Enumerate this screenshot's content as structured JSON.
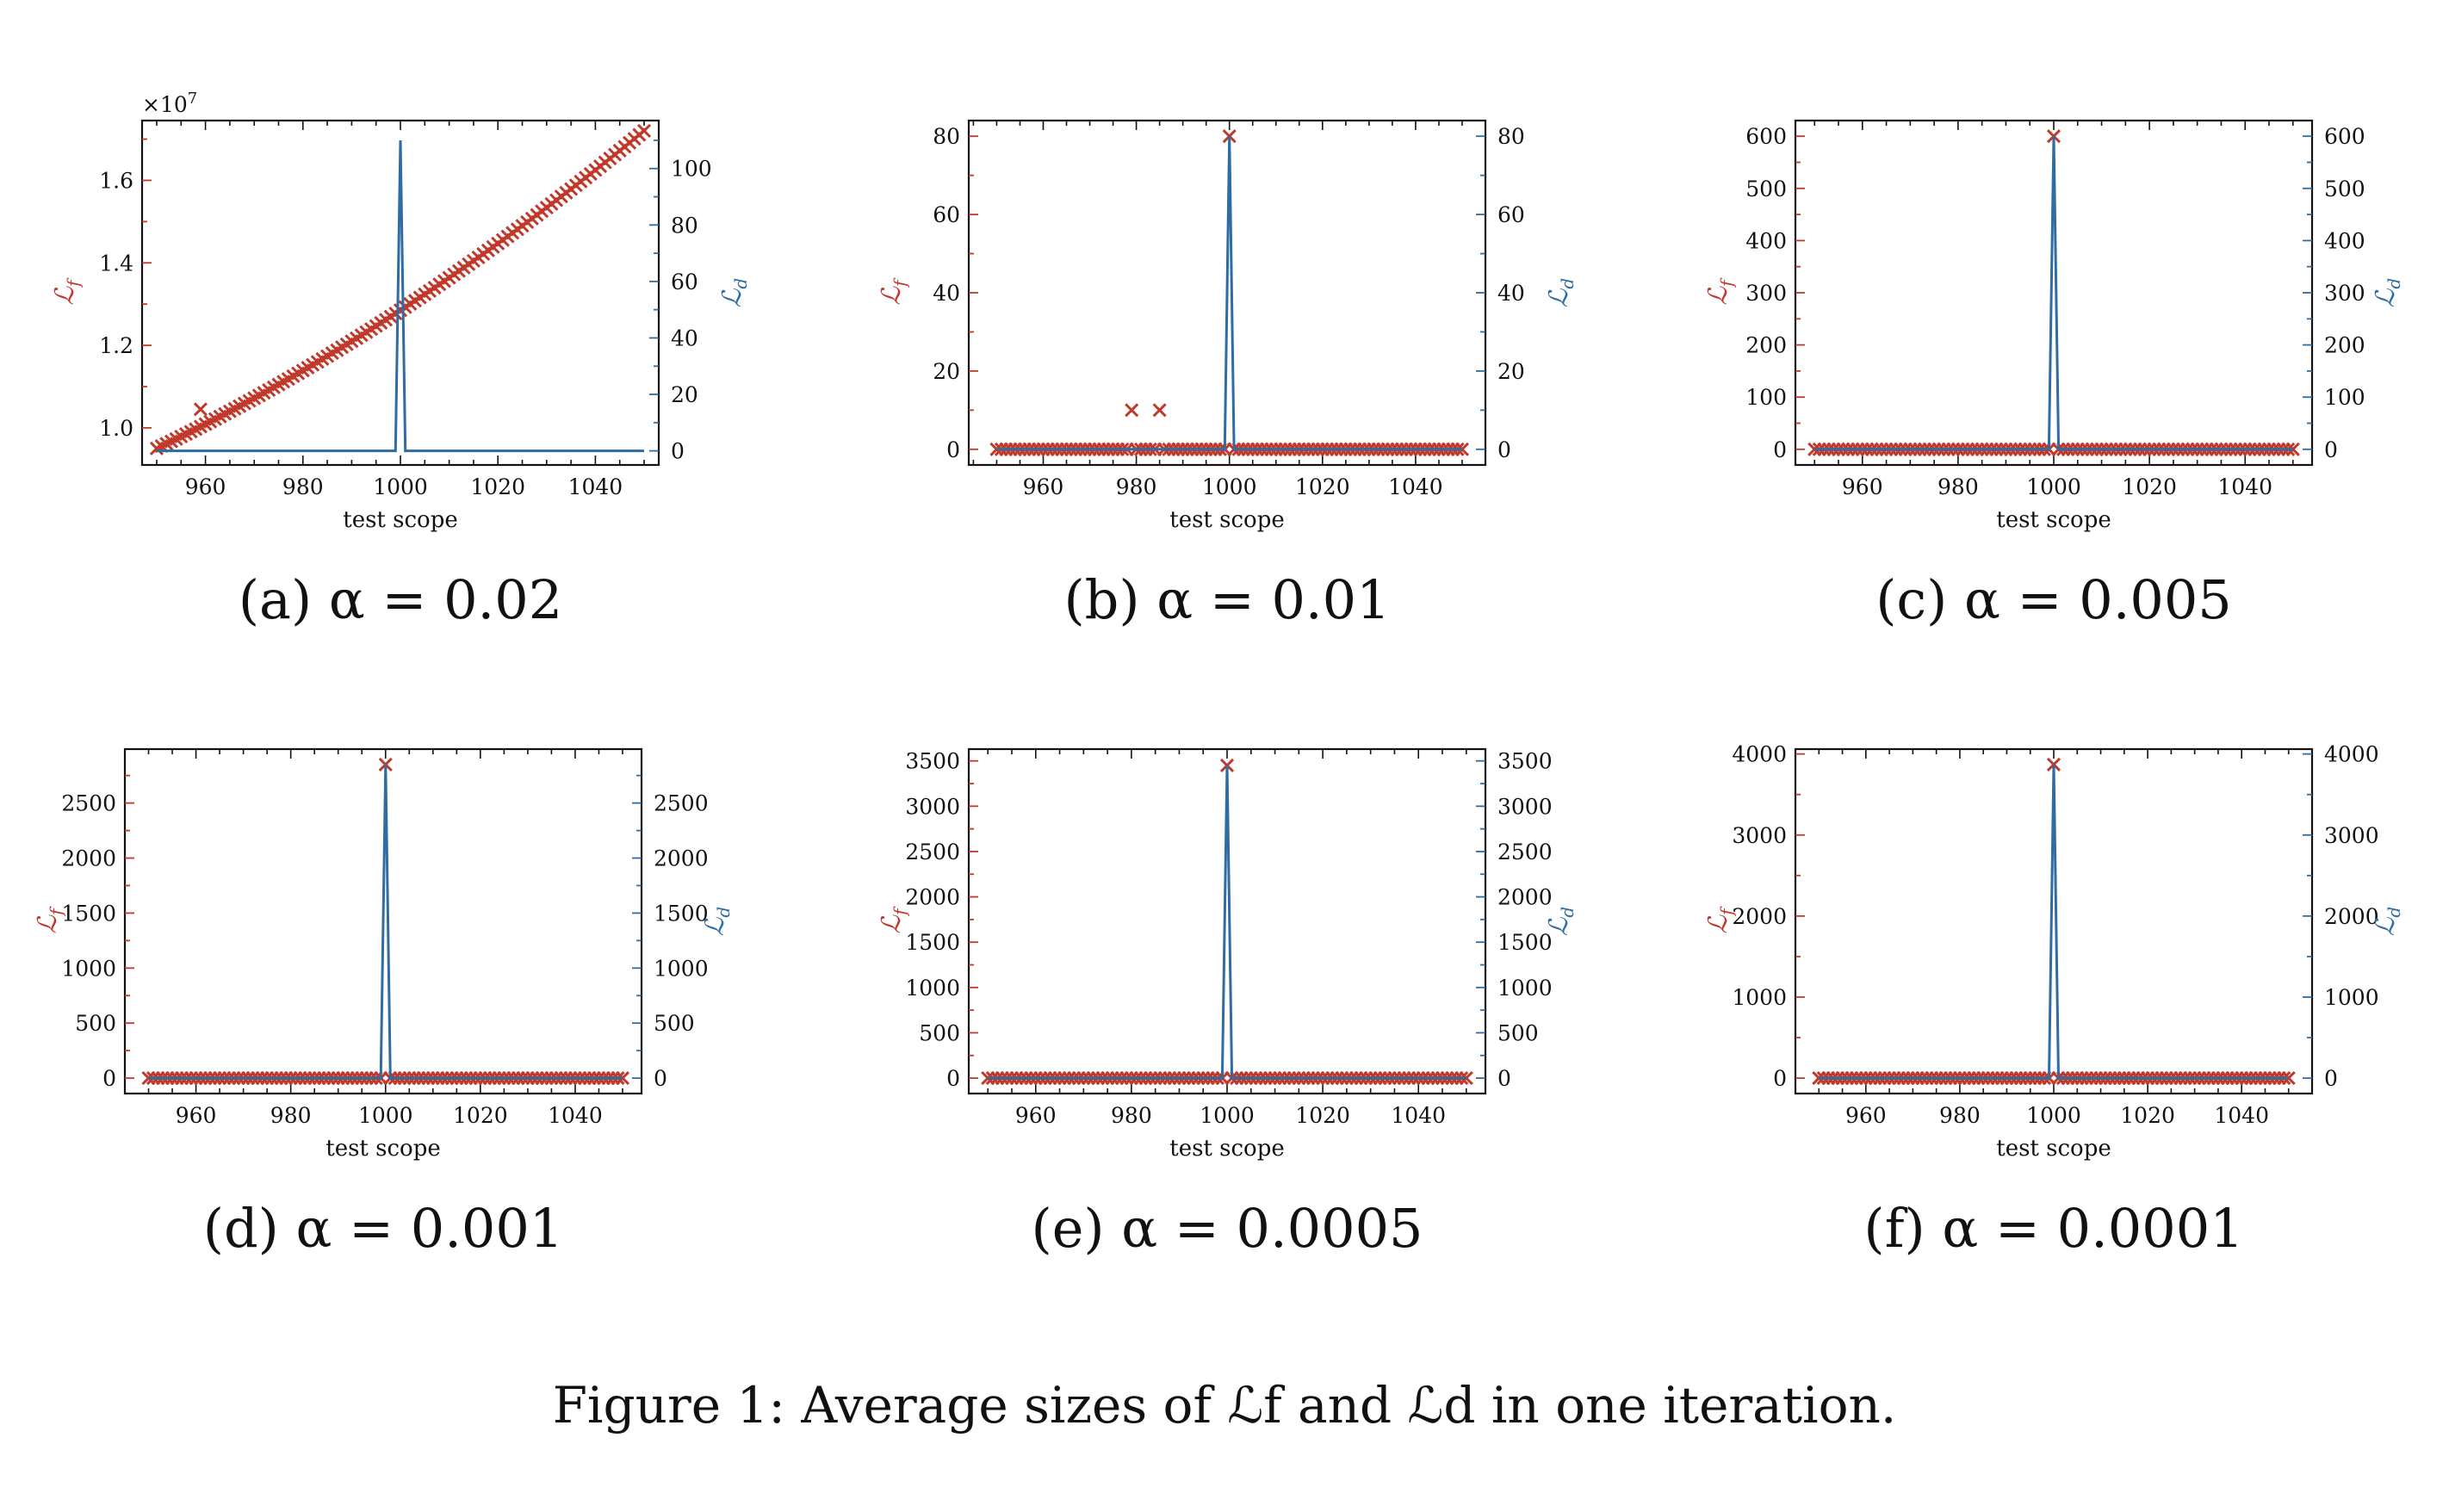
{
  "caption": "Figure 1: Average sizes of ℒf and ℒd in one iteration.",
  "colors": {
    "lf": "#c0392b",
    "ld": "#2e6ca4",
    "axis": "#111111"
  },
  "chart_data": [
    {
      "type": "line",
      "panel_label": "(a) α = 0.02",
      "xlabel": "test scope",
      "ylabel_left": "ℒf",
      "ylabel_right": "ℒd",
      "x": [
        950,
        1050
      ],
      "xlim": [
        947,
        1053
      ],
      "xticks": [
        960,
        980,
        1000,
        1020,
        1040
      ],
      "left_axis": {
        "ylim": [
          9100000.0,
          17450000.0
        ],
        "ticks": [
          1.0,
          1.2,
          1.4,
          1.6
        ],
        "tick_labels": [
          "1.0",
          "1.2",
          "1.4",
          "1.6"
        ],
        "offset_text": "×10^7",
        "scale": 10000000.0
      },
      "right_axis": {
        "ylim": [
          -5,
          117
        ],
        "ticks": [
          0,
          20,
          40,
          60,
          80,
          100
        ]
      },
      "series": [
        {
          "name": "ℒf",
          "marker": "x",
          "axis": "left",
          "kind": "quadratic",
          "from": [
            950,
            9500000.0
          ],
          "mid": [
            1000,
            12850000.0
          ],
          "to": [
            1050,
            17200000.0
          ],
          "outliers": [
            [
              959,
              10450000.0
            ]
          ]
        },
        {
          "name": "ℒd",
          "marker": "none",
          "axis": "right",
          "kind": "spike",
          "base": 0,
          "peak_x": 1000,
          "peak": 110
        }
      ]
    },
    {
      "type": "line",
      "panel_label": "(b) α = 0.01",
      "xlabel": "test scope",
      "ylabel_left": "ℒf",
      "ylabel_right": "ℒd",
      "x": [
        950,
        1050
      ],
      "xlim": [
        944,
        1055
      ],
      "xticks": [
        960,
        980,
        1000,
        1020,
        1040
      ],
      "left_axis": {
        "ylim": [
          -4,
          84
        ],
        "ticks": [
          0,
          20,
          40,
          60,
          80
        ]
      },
      "right_axis": {
        "ylim": [
          -4,
          84
        ],
        "ticks": [
          0,
          20,
          40,
          60,
          80
        ]
      },
      "series": [
        {
          "name": "ℒf",
          "marker": "x",
          "axis": "left",
          "kind": "baseline",
          "base": 0,
          "points": [
            [
              979,
              10
            ],
            [
              985,
              10
            ],
            [
              1000,
              80
            ]
          ]
        },
        {
          "name": "ℒd",
          "marker": "none",
          "axis": "right",
          "kind": "spike",
          "base": 0,
          "peak_x": 1000,
          "peak": 80
        }
      ]
    },
    {
      "type": "line",
      "panel_label": "(c) α = 0.005",
      "xlabel": "test scope",
      "ylabel_left": "ℒf",
      "ylabel_right": "ℒd",
      "x": [
        950,
        1050
      ],
      "xlim": [
        946,
        1054
      ],
      "xticks": [
        960,
        980,
        1000,
        1020,
        1040
      ],
      "left_axis": {
        "ylim": [
          -30,
          630
        ],
        "ticks": [
          0,
          100,
          200,
          300,
          400,
          500,
          600
        ]
      },
      "right_axis": {
        "ylim": [
          -30,
          630
        ],
        "ticks": [
          0,
          100,
          200,
          300,
          400,
          500,
          600
        ]
      },
      "series": [
        {
          "name": "ℒf",
          "marker": "x",
          "axis": "left",
          "kind": "baseline",
          "base": 0,
          "points": [
            [
              1000,
              600
            ]
          ]
        },
        {
          "name": "ℒd",
          "marker": "none",
          "axis": "right",
          "kind": "spike",
          "base": 0,
          "peak_x": 1000,
          "peak": 600
        }
      ]
    },
    {
      "type": "line",
      "panel_label": "(d) α = 0.001",
      "xlabel": "test scope",
      "ylabel_left": "ℒf",
      "ylabel_right": "ℒd",
      "x": [
        950,
        1050
      ],
      "xlim": [
        945,
        1054
      ],
      "xticks": [
        960,
        980,
        1000,
        1020,
        1040
      ],
      "left_axis": {
        "ylim": [
          -140,
          2990
        ],
        "ticks": [
          0,
          500,
          1000,
          1500,
          2000,
          2500
        ]
      },
      "right_axis": {
        "ylim": [
          -140,
          2990
        ],
        "ticks": [
          0,
          500,
          1000,
          1500,
          2000,
          2500
        ]
      },
      "series": [
        {
          "name": "ℒf",
          "marker": "x",
          "axis": "left",
          "kind": "baseline",
          "base": 0,
          "points": [
            [
              1000,
              2850
            ]
          ]
        },
        {
          "name": "ℒd",
          "marker": "none",
          "axis": "right",
          "kind": "spike",
          "base": 0,
          "peak_x": 1000,
          "peak": 2850
        }
      ]
    },
    {
      "type": "line",
      "panel_label": "(e) α = 0.0005",
      "xlabel": "test scope",
      "ylabel_left": "ℒf",
      "ylabel_right": "ℒd",
      "x": [
        950,
        1050
      ],
      "xlim": [
        946,
        1054
      ],
      "xticks": [
        960,
        980,
        1000,
        1020,
        1040
      ],
      "left_axis": {
        "ylim": [
          -170,
          3630
        ],
        "ticks": [
          0,
          500,
          1000,
          1500,
          2000,
          2500,
          3000,
          3500
        ]
      },
      "right_axis": {
        "ylim": [
          -170,
          3630
        ],
        "ticks": [
          0,
          500,
          1000,
          1500,
          2000,
          2500,
          3000,
          3500
        ]
      },
      "series": [
        {
          "name": "ℒf",
          "marker": "x",
          "axis": "left",
          "kind": "baseline",
          "base": 0,
          "points": [
            [
              1000,
              3450
            ]
          ]
        },
        {
          "name": "ℒd",
          "marker": "none",
          "axis": "right",
          "kind": "spike",
          "base": 0,
          "peak_x": 1000,
          "peak": 3450
        }
      ]
    },
    {
      "type": "line",
      "panel_label": "(f) α = 0.0001",
      "xlabel": "test scope",
      "ylabel_left": "ℒf",
      "ylabel_right": "ℒd",
      "x": [
        950,
        1050
      ],
      "xlim": [
        945,
        1055
      ],
      "xticks": [
        960,
        980,
        1000,
        1020,
        1040
      ],
      "left_axis": {
        "ylim": [
          -190,
          4060
        ],
        "ticks": [
          0,
          1000,
          2000,
          3000,
          4000
        ]
      },
      "right_axis": {
        "ylim": [
          -190,
          4060
        ],
        "ticks": [
          0,
          1000,
          2000,
          3000,
          4000
        ]
      },
      "series": [
        {
          "name": "ℒf",
          "marker": "x",
          "axis": "left",
          "kind": "baseline",
          "base": 0,
          "points": [
            [
              1000,
              3870
            ]
          ]
        },
        {
          "name": "ℒd",
          "marker": "none",
          "axis": "right",
          "kind": "spike",
          "base": 0,
          "peak_x": 1000,
          "peak": 3870
        }
      ]
    }
  ]
}
